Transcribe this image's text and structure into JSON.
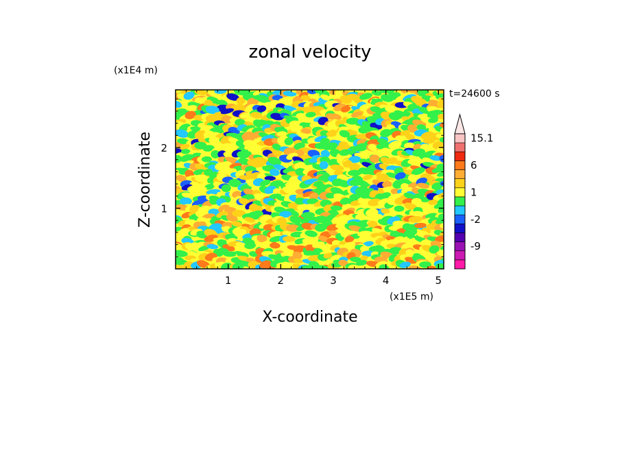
{
  "chart_data": {
    "type": "heatmap",
    "title": "zonal velocity",
    "xlabel": "X-coordinate",
    "ylabel": "Z-coordinate",
    "x_unit": "(x1E5 m)",
    "y_unit": "(x1E4 m)",
    "time_label": "t=24600 s",
    "xlim": [
      0,
      5.1
    ],
    "ylim": [
      0,
      2.95
    ],
    "x_ticks": [
      1,
      2,
      3,
      4,
      5
    ],
    "y_ticks": [
      1,
      2
    ],
    "colorbar": {
      "levels": [
        {
          "label": "",
          "color": "#ff1aa8"
        },
        {
          "label": "",
          "color": "#cc1ab3"
        },
        {
          "label": "-9",
          "color": "#9a12b3"
        },
        {
          "label": "",
          "color": "#5500b0"
        },
        {
          "label": "",
          "color": "#1010c8"
        },
        {
          "label": "-2",
          "color": "#1a60ff"
        },
        {
          "label": "",
          "color": "#23c8ff"
        },
        {
          "label": "",
          "color": "#33f04a"
        },
        {
          "label": "1",
          "color": "#ffff33"
        },
        {
          "label": "",
          "color": "#ffd21a"
        },
        {
          "label": "",
          "color": "#ffad33"
        },
        {
          "label": "6",
          "color": "#ff7a1a"
        },
        {
          "label": "",
          "color": "#ee2a10"
        },
        {
          "label": "",
          "color": "#f07070"
        },
        {
          "label": "15.1",
          "color": "#f8c4c4"
        }
      ],
      "extend": "max"
    },
    "field_description_levels": {
      "dominant": [
        "#33f04a",
        "#ffff33",
        "#ffd21a",
        "#ffad33"
      ],
      "minor": [
        "#23c8ff",
        "#1a60ff",
        "#1010c8",
        "#ff7a1a"
      ]
    }
  }
}
